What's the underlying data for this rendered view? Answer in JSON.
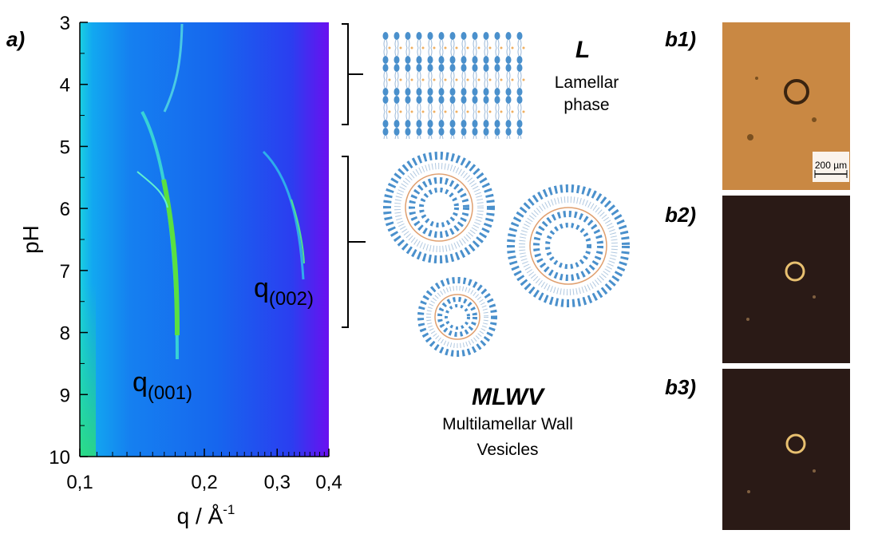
{
  "panel_a": {
    "label": "a)",
    "y_label": "pH",
    "x_label": "q / Å",
    "x_label_sup": "-1",
    "ylim": [
      3,
      10
    ],
    "yticks": [
      3,
      4,
      5,
      6,
      7,
      8,
      9,
      10
    ],
    "y_inverted": true,
    "xlim": [
      0.1,
      0.4
    ],
    "x_log": true,
    "xticks": [
      {
        "value": 0.1,
        "label": "0,1"
      },
      {
        "value": 0.2,
        "label": "0,2"
      },
      {
        "value": 0.3,
        "label": "0,3"
      },
      {
        "value": 0.4,
        "label": "0,4"
      }
    ],
    "annotations": [
      {
        "text": "q",
        "sub": "(002)"
      },
      {
        "text": "q",
        "sub": "(001)"
      }
    ]
  },
  "phases": [
    {
      "name": "L",
      "description": [
        "Lamellar",
        "phase"
      ]
    },
    {
      "name": "MLWV",
      "description": [
        "Multilamellar Wall",
        "Vesicles"
      ]
    }
  ],
  "micrographs": [
    {
      "label": "b1)",
      "scale_bar": "200 µm"
    },
    {
      "label": "b2)"
    },
    {
      "label": "b3)"
    }
  ]
}
